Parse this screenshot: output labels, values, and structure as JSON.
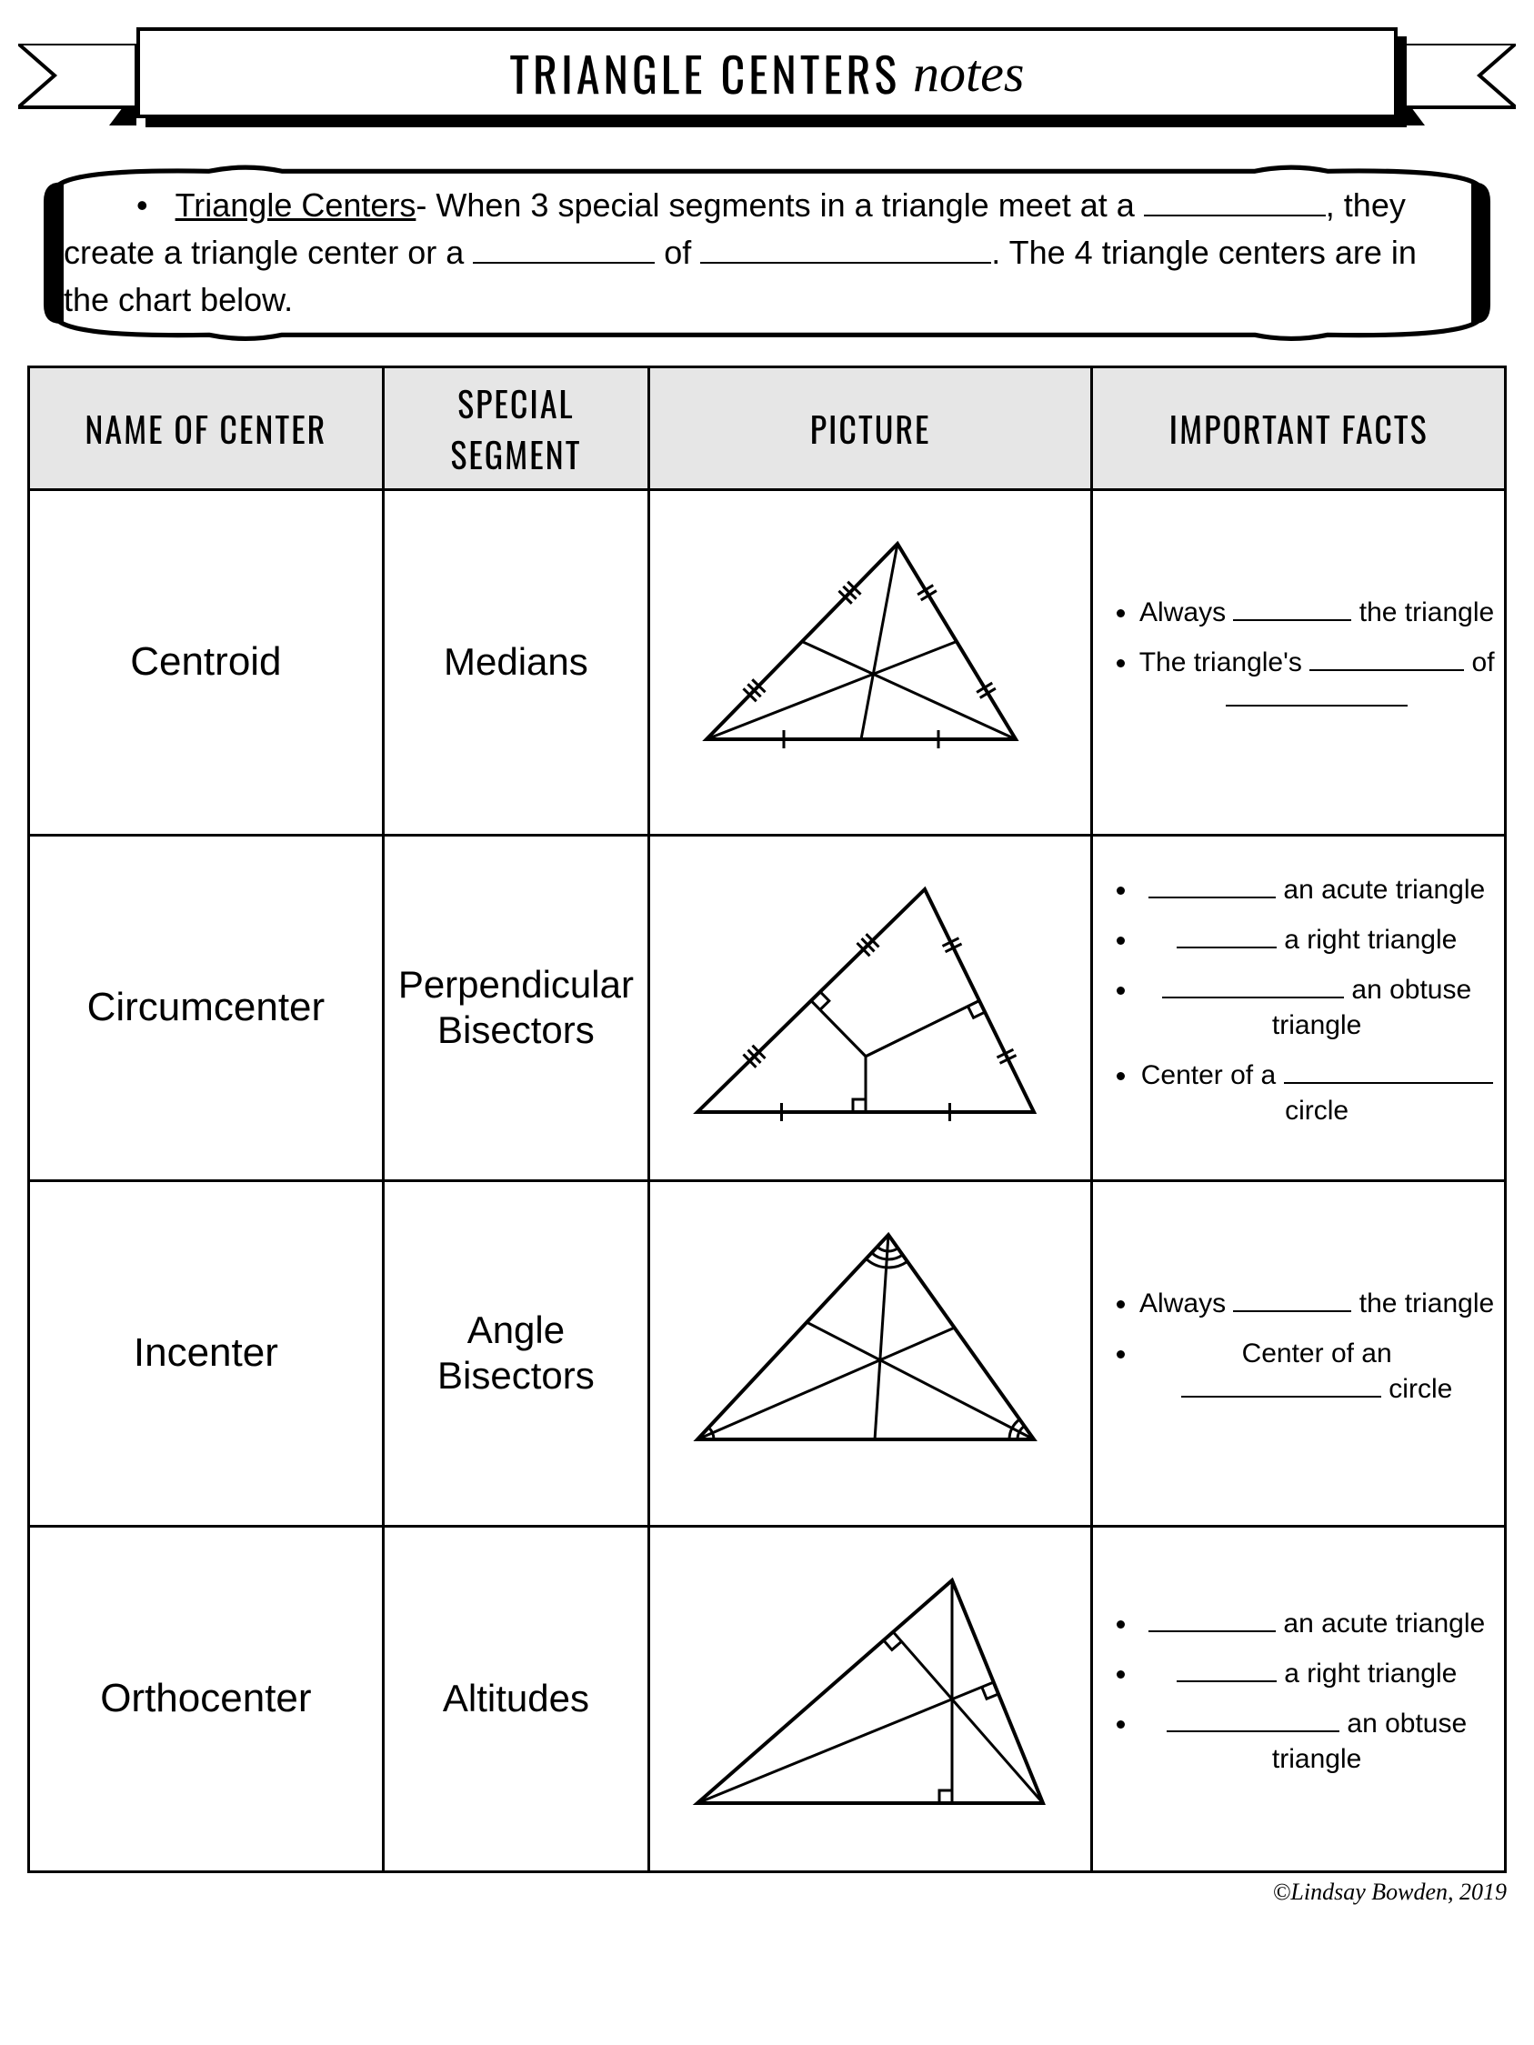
{
  "title": {
    "main": "TRIANGLE CENTERS",
    "cursive": "notes"
  },
  "intro": {
    "bullet": "•",
    "term": "Triangle Centers",
    "text1": "- When 3 special segments in a triangle meet at a ",
    "text2": ", they create a triangle center or a ",
    "text3": " of ",
    "text4": ". The 4 triangle centers are in the chart below.",
    "blank1_w": 200,
    "blank2_w": 200,
    "blank3_w": 320
  },
  "columns": {
    "c0": "NAME OF CENTER",
    "c1": "SPECIAL SEGMENT",
    "c2": "PICTURE",
    "c3": "IMPORTANT FACTS"
  },
  "rows": {
    "r0": {
      "name": "Centroid",
      "segment": "Medians",
      "picture": {
        "type": "triangle-centroid",
        "stroke": "#000000",
        "stroke_width": 3,
        "A": [
          30,
          230
        ],
        "B": [
          370,
          230
        ],
        "C": [
          240,
          15
        ],
        "tick_style": "double"
      },
      "facts": [
        {
          "pre": "Always ",
          "blank": 130,
          "post": " the triangle"
        },
        {
          "pre": "The triangle's ",
          "blank": 170,
          "post": " of ",
          "blank2": 200
        }
      ]
    },
    "r1": {
      "name": "Circumcenter",
      "segment": "Perpendicular Bisectors",
      "picture": {
        "type": "triangle-circumcenter",
        "stroke": "#000000",
        "stroke_width": 3,
        "A": [
          20,
          260
        ],
        "B": [
          390,
          260
        ],
        "C": [
          270,
          15
        ]
      },
      "facts": [
        {
          "blank": 140,
          "post": " an acute triangle"
        },
        {
          "blank": 110,
          "post": " a right triangle"
        },
        {
          "blank": 200,
          "post": " an obtuse triangle"
        },
        {
          "pre": "Center of a ",
          "blank": 230,
          "post": " circle"
        }
      ]
    },
    "r2": {
      "name": "Incenter",
      "segment": "Angle Bisectors",
      "picture": {
        "type": "triangle-incenter",
        "stroke": "#000000",
        "stroke_width": 3,
        "A": [
          20,
          240
        ],
        "B": [
          390,
          240
        ],
        "C": [
          230,
          15
        ]
      },
      "facts": [
        {
          "pre": "Always ",
          "blank": 130,
          "post": " the triangle"
        },
        {
          "pre": "Center of an ",
          "blank": 220,
          "post": " circle"
        }
      ]
    },
    "r3": {
      "name": "Orthocenter",
      "segment": "Altitudes",
      "picture": {
        "type": "triangle-orthocenter",
        "stroke": "#000000",
        "stroke_width": 3,
        "A": [
          20,
          260
        ],
        "B": [
          400,
          260
        ],
        "C": [
          300,
          15
        ]
      },
      "facts": [
        {
          "blank": 140,
          "post": " an acute triangle"
        },
        {
          "blank": 110,
          "post": " a right triangle"
        },
        {
          "blank": 190,
          "post": " an obtuse triangle"
        }
      ]
    }
  },
  "copyright": "©Lindsay Bowden, 2019",
  "style": {
    "header_bg": "#e6e6e6",
    "border": "#000000",
    "page_bg": "#ffffff",
    "title_font": "Arial Narrow",
    "body_font": "Comic Sans MS"
  }
}
